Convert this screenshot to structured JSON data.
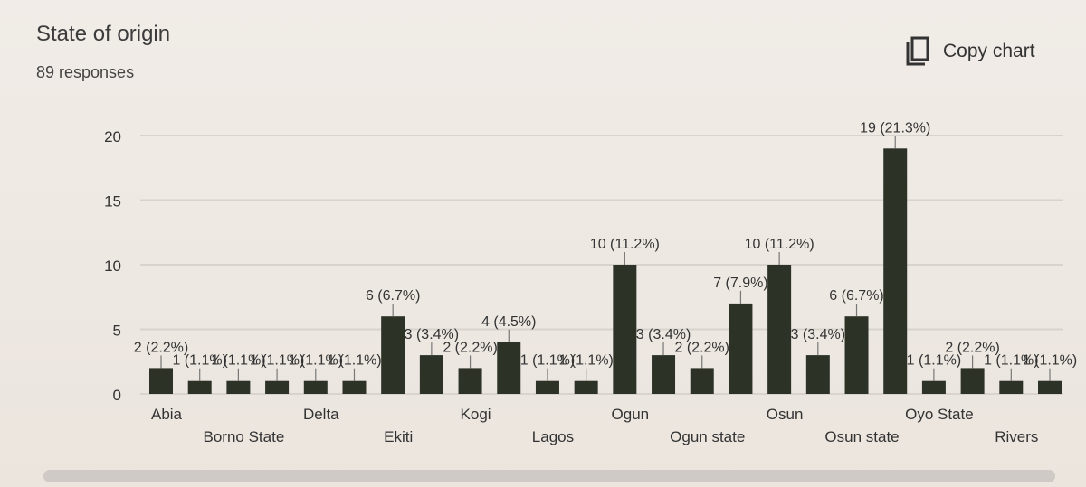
{
  "header": {
    "title": "State of origin",
    "responses": "89 responses"
  },
  "toolbar": {
    "copy_label": "Copy chart",
    "copy_icon": "copy-icon"
  },
  "colors": {
    "bar": "#2c3226",
    "grid": "#d9d3cd",
    "text": "#333333"
  },
  "chart_data": {
    "type": "bar",
    "title": "State of origin",
    "xlabel": "",
    "ylabel": "",
    "ylim": [
      0,
      20
    ],
    "yticks": [
      0,
      5,
      10,
      15,
      20
    ],
    "grid": true,
    "bars": [
      {
        "value": 2,
        "label": "2 (2.2%)",
        "category": "Abia"
      },
      {
        "value": 1,
        "label": "1 (1.1%)",
        "category": ""
      },
      {
        "value": 1,
        "label": "1 (1.1%)",
        "category": "Borno State"
      },
      {
        "value": 1,
        "label": "1 (1.1%)",
        "category": ""
      },
      {
        "value": 1,
        "label": "1 (1.1%)",
        "category": "Delta"
      },
      {
        "value": 1,
        "label": "1 (1.1%)",
        "category": ""
      },
      {
        "value": 6,
        "label": "6 (6.7%)",
        "category": "Ekiti"
      },
      {
        "value": 3,
        "label": "3 (3.4%)",
        "category": ""
      },
      {
        "value": 2,
        "label": "2 (2.2%)",
        "category": "Kogi"
      },
      {
        "value": 4,
        "label": "4 (4.5%)",
        "category": ""
      },
      {
        "value": 1,
        "label": "1 (1.1%)",
        "category": "Lagos"
      },
      {
        "value": 1,
        "label": "1 (1.1%)",
        "category": ""
      },
      {
        "value": 10,
        "label": "10 (11.2%)",
        "category": "Ogun"
      },
      {
        "value": 3,
        "label": "3 (3.4%)",
        "category": ""
      },
      {
        "value": 2,
        "label": "2 (2.2%)",
        "category": "Ogun state"
      },
      {
        "value": 7,
        "label": "7 (7.9%)",
        "category": ""
      },
      {
        "value": 10,
        "label": "10 (11.2%)",
        "category": "Osun"
      },
      {
        "value": 3,
        "label": "3 (3.4%)",
        "category": ""
      },
      {
        "value": 6,
        "label": "6 (6.7%)",
        "category": "Osun state"
      },
      {
        "value": 19,
        "label": "19 (21.3%)",
        "category": ""
      },
      {
        "value": 1,
        "label": "1 (1.1%)",
        "category": "Oyo State"
      },
      {
        "value": 2,
        "label": "2 (2.2%)",
        "category": ""
      },
      {
        "value": 1,
        "label": "1 (1.1%)",
        "category": "Rivers"
      },
      {
        "value": 1,
        "label": "1 (1.1%)",
        "category": ""
      }
    ]
  }
}
